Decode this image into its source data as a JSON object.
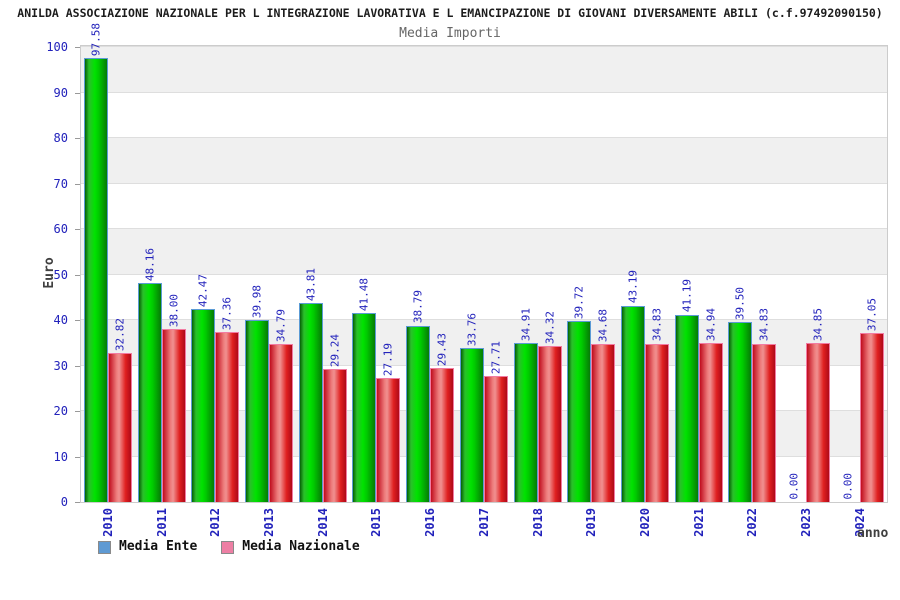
{
  "header": {
    "title": "ANILDA ASSOCIAZIONE NAZIONALE PER L INTEGRAZIONE LAVORATIVA E L EMANCIPAZIONE DI GIOVANI DIVERSAMENTE ABILI (c.f.97492090150)",
    "subtitle": "Media Importi"
  },
  "axes": {
    "y_title": "Euro",
    "x_title": "anno"
  },
  "legend": {
    "items": [
      {
        "label": "Media Ente",
        "swatch_color": "#5f9ad3"
      },
      {
        "label": "Media Nazionale",
        "swatch_color": "#ed7fa4"
      }
    ]
  },
  "chart_data": {
    "type": "bar",
    "title": "Media Importi",
    "categories": [
      "2010",
      "2011",
      "2012",
      "2013",
      "2014",
      "2015",
      "2016",
      "2017",
      "2018",
      "2019",
      "2020",
      "2021",
      "2022",
      "2023",
      "2024"
    ],
    "series": [
      {
        "name": "Media Ente",
        "values": [
          97.58,
          48.16,
          42.47,
          39.98,
          43.81,
          41.48,
          38.79,
          33.76,
          34.91,
          39.72,
          43.19,
          41.19,
          39.5,
          0.0,
          0.0
        ]
      },
      {
        "name": "Media Nazionale",
        "values": [
          32.82,
          38.0,
          37.36,
          34.79,
          29.24,
          27.19,
          29.43,
          27.71,
          34.32,
          34.68,
          34.83,
          34.94,
          34.83,
          34.85,
          37.05
        ]
      }
    ],
    "xlabel": "anno",
    "ylabel": "Euro",
    "ylim": [
      0,
      100
    ],
    "y_tick_step": 10,
    "grid": true,
    "value_labels": true,
    "legend_position": "bottom-left",
    "band_colors": [
      "#ffffff",
      "#f0f0f0"
    ],
    "label_color": "#2222bb"
  }
}
